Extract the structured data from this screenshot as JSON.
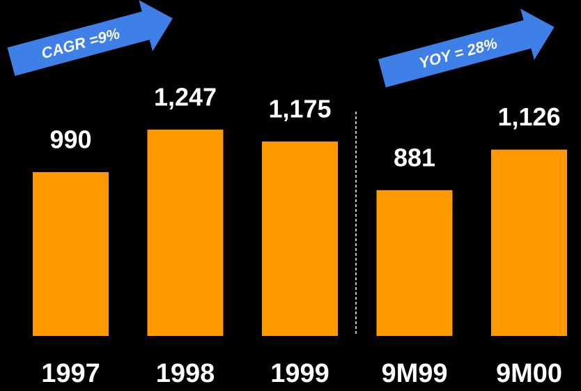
{
  "chart_data": {
    "type": "bar",
    "categories": [
      "1997",
      "1998",
      "1999",
      "9M99",
      "9M00"
    ],
    "values": [
      990,
      1247,
      1175,
      881,
      1126
    ],
    "value_labels": [
      "990",
      "1,247",
      "1,175",
      "881",
      "1,126"
    ],
    "color": "#ff9900",
    "annotations": [
      "CAGR =9%",
      "YOY = 28%"
    ]
  }
}
